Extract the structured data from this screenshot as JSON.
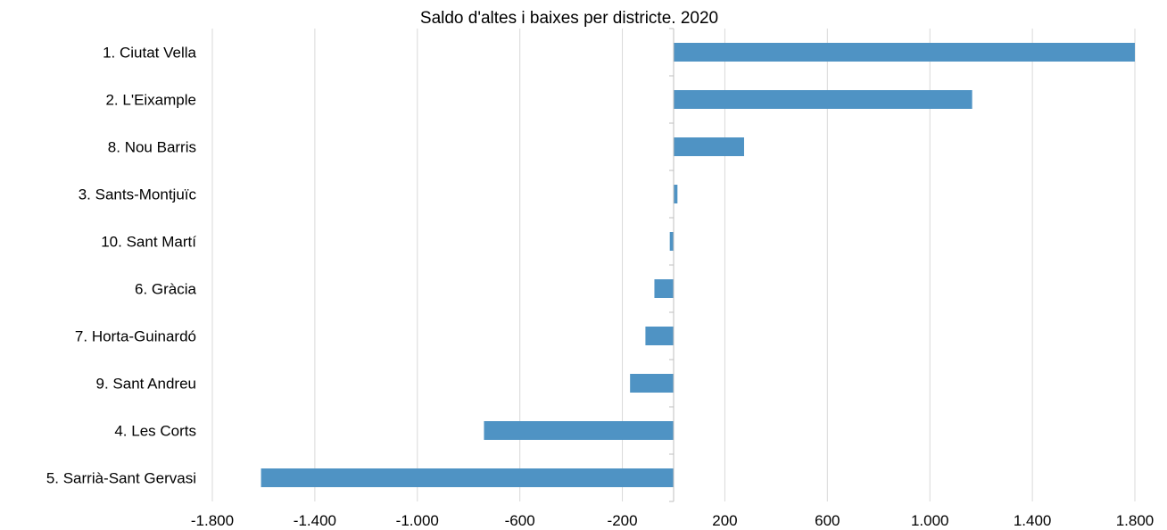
{
  "chart_data": {
    "type": "bar",
    "orientation": "horizontal",
    "title": "Saldo d'altes i baixes per districte. 2020",
    "xlabel": "",
    "ylabel": "",
    "categories": [
      "1. Ciutat Vella",
      "2. L'Eixample",
      "8. Nou Barris",
      "3. Sants-Montjuïc",
      "10. Sant Martí",
      "6. Gràcia",
      "7. Horta-Guinardó",
      "9. Sant Andreu",
      "4. Les Corts",
      "5. Sarrià-Sant Gervasi"
    ],
    "values": [
      1800,
      1165,
      275,
      15,
      -15,
      -75,
      -110,
      -170,
      -740,
      -1610
    ],
    "xlim": [
      -1800,
      1800
    ],
    "xticks": [
      -1800,
      -1400,
      -1000,
      -600,
      -200,
      200,
      600,
      1000,
      1400,
      1800
    ],
    "xtick_labels": [
      "-1.800",
      "-1.400",
      "-1.000",
      "-600",
      "-200",
      "200",
      "600",
      "1.000",
      "1.400",
      "1.800"
    ],
    "grid": "vertical",
    "legend": "none",
    "colors": {
      "bar": "#4f93c4",
      "grid": "#d9d9d9",
      "axis": "#bfbfbf",
      "text": "#000000"
    }
  }
}
